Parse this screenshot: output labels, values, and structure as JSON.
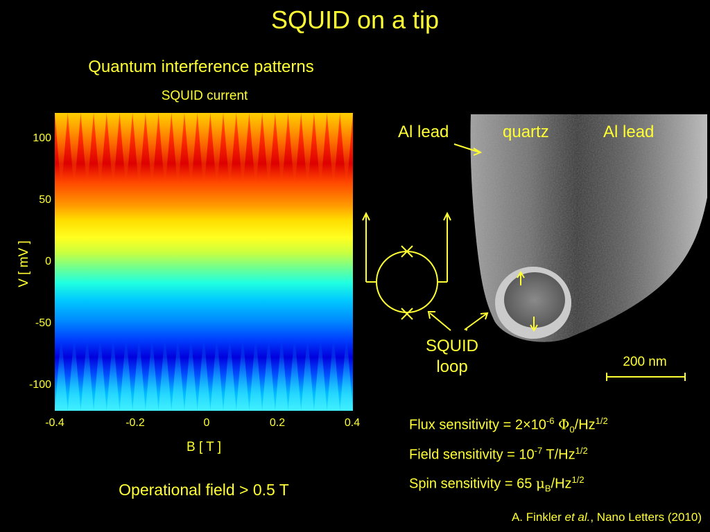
{
  "slide": {
    "title": "SQUID on a tip",
    "subtitle": "Quantum interference patterns",
    "operational_field": "Operational field > 0.5 T"
  },
  "chart_data": {
    "type": "heatmap",
    "title": "SQUID current",
    "xlabel": "B [ T ]",
    "ylabel": "V [ mV ]",
    "xlim": [
      -0.4,
      0.4
    ],
    "ylim": [
      -120,
      120
    ],
    "x_ticks": [
      "-0.4",
      "-0.2",
      "0",
      "0.2",
      "0.4"
    ],
    "y_ticks": [
      "100",
      "50",
      "0",
      "-50",
      "-100"
    ],
    "colormap": "jet",
    "lobe_count": 23
  },
  "image": {
    "labels": {
      "al_lead_left": "Al lead",
      "quartz": "quartz",
      "al_lead_right": "Al lead",
      "squid_line1": "SQUID",
      "squid_line2": "loop",
      "scale_bar": "200 nm"
    }
  },
  "sensitivity": {
    "flux": {
      "label": "Flux sensitivity = 2×10",
      "exp": "-6",
      "symbol": "Φ",
      "sub": "0",
      "unit": "/Hz",
      "unit_exp": "1/2"
    },
    "field": {
      "label": "Field sensitivity = 10",
      "exp": "-7",
      "unit": " T/Hz",
      "unit_exp": "1/2"
    },
    "spin": {
      "label": "Spin sensitivity = 65 ",
      "symbol": "μ",
      "sub": "B",
      "unit": "/Hz",
      "unit_exp": "1/2"
    }
  },
  "citation": {
    "author": "A. Finkler ",
    "etal": "et al.",
    "journal": ", Nano Letters (2010)"
  },
  "colors": {
    "background": "#000000",
    "text": "#ffff33"
  }
}
